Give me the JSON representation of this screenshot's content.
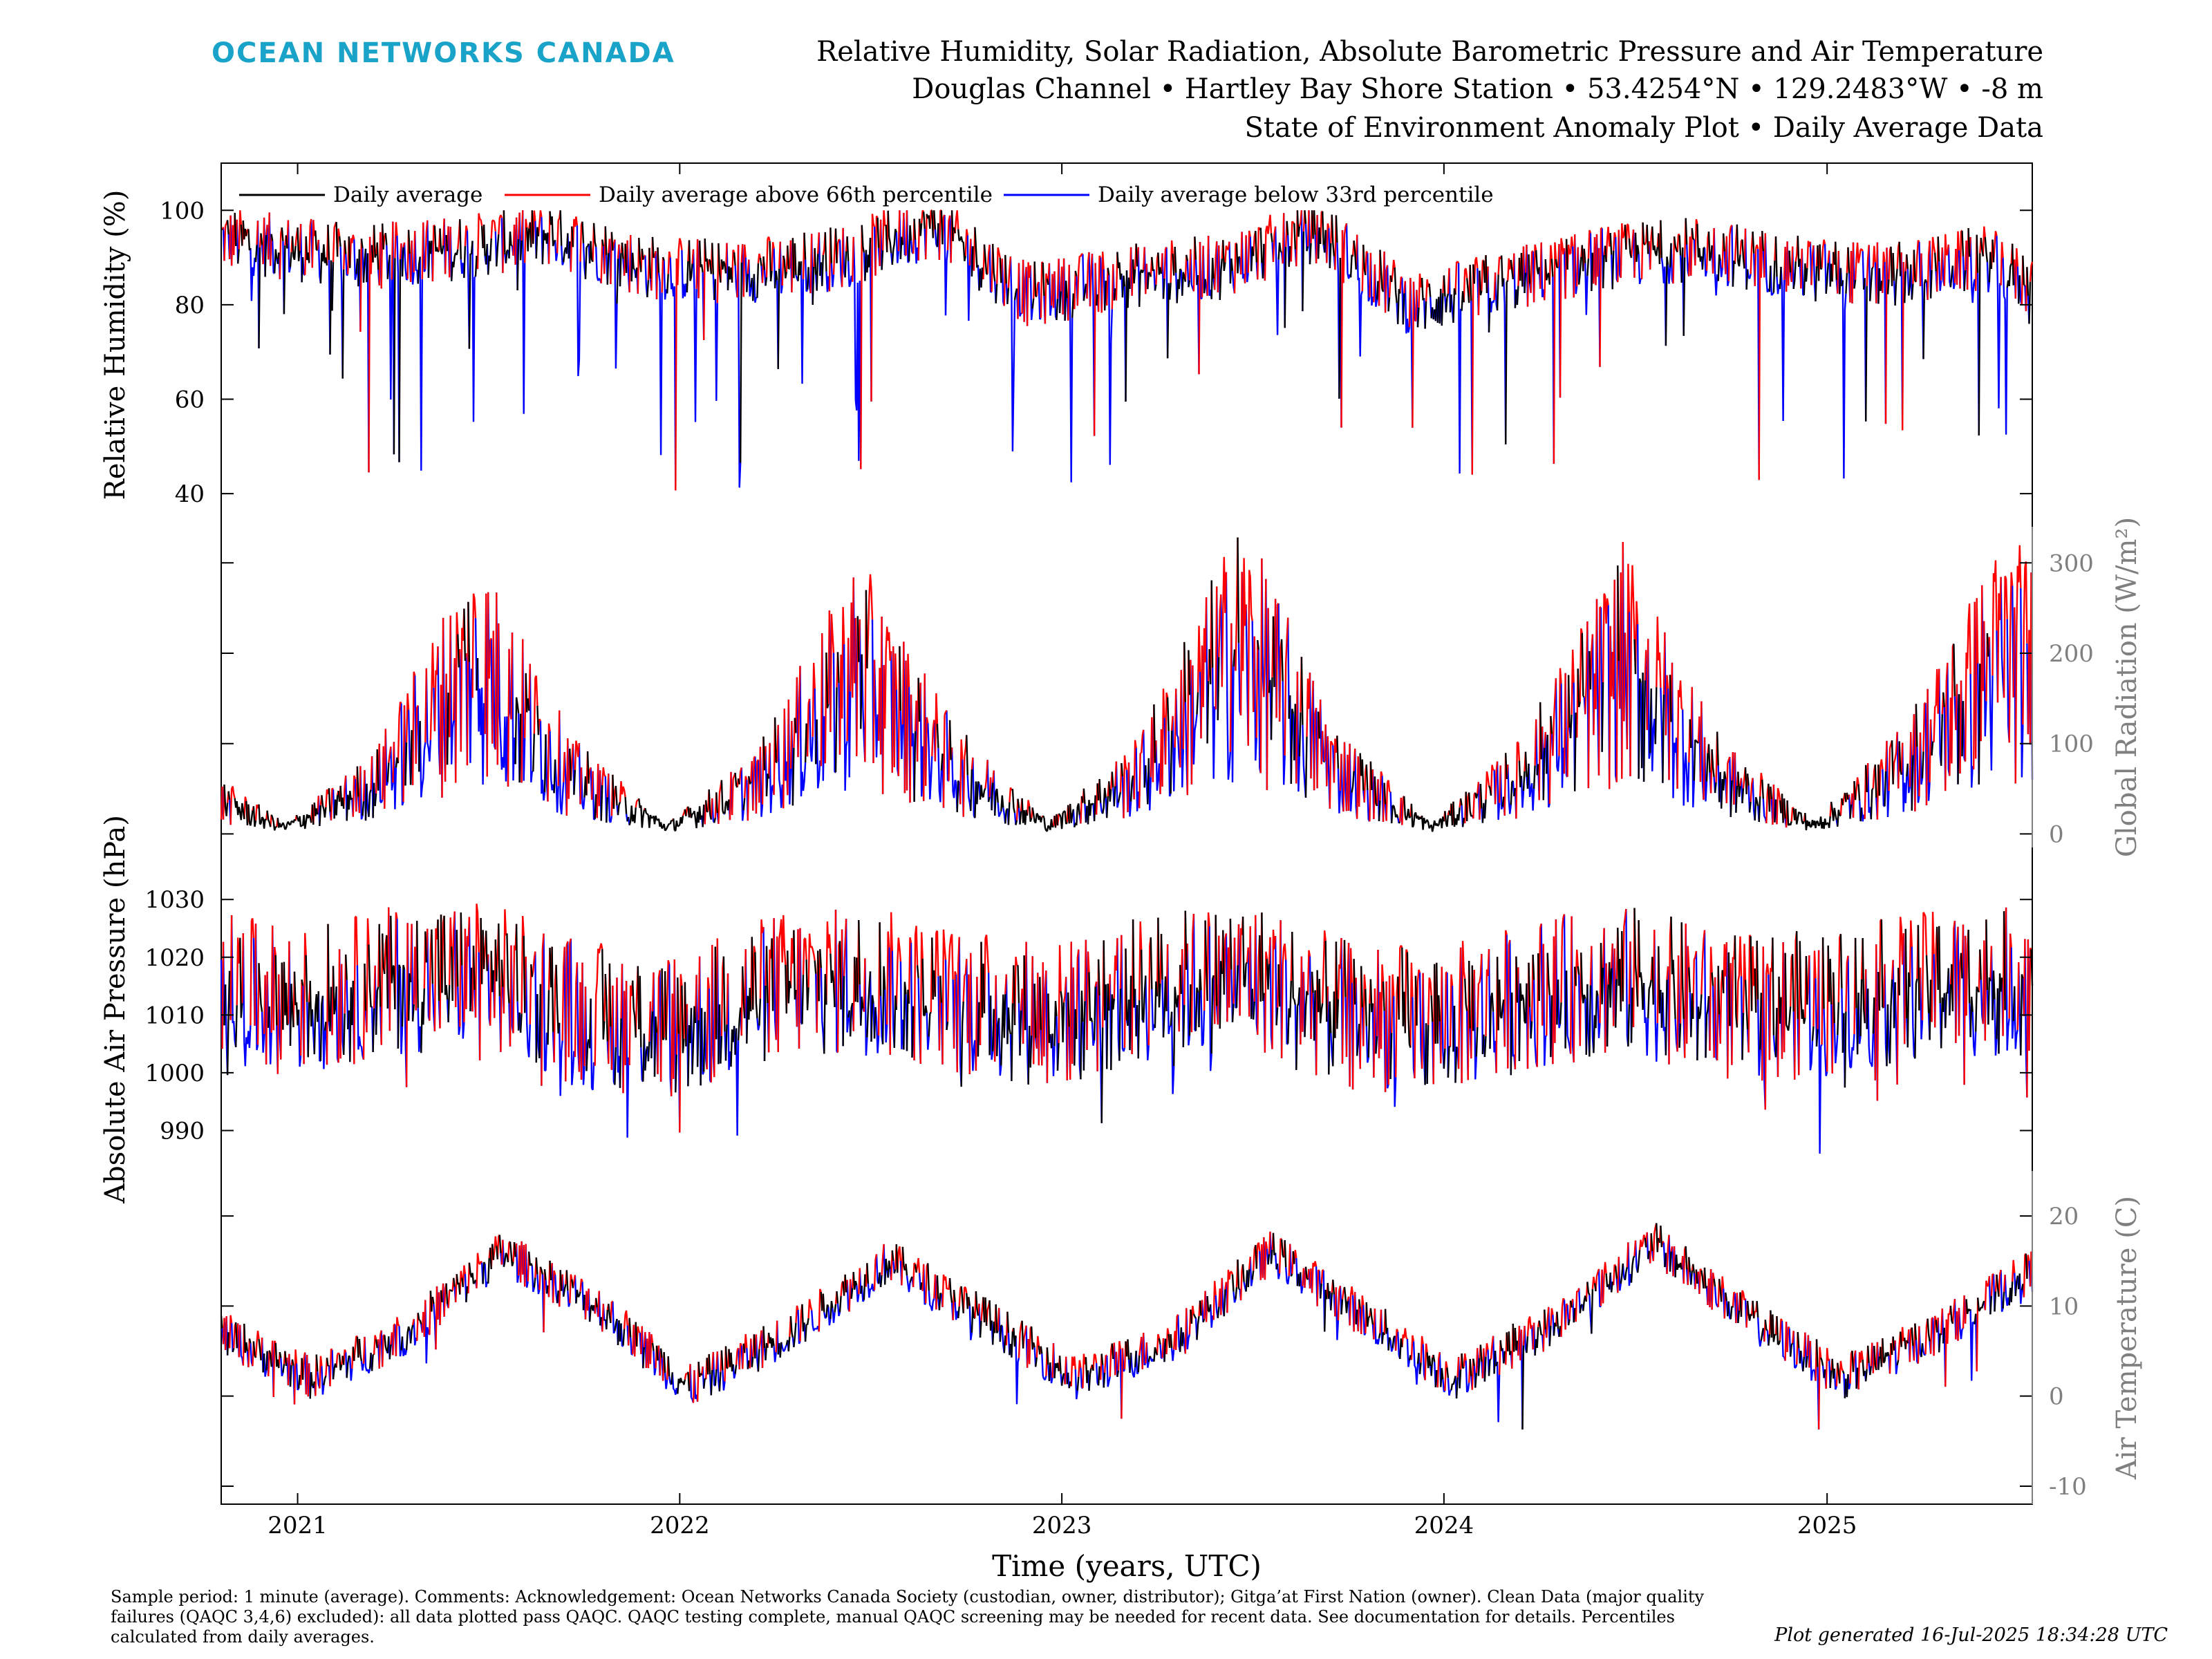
{
  "header": {
    "logo_text": "OCEAN NETWORKS CANADA",
    "title_line1": "Relative Humidity, Solar Radiation, Absolute Barometric Pressure and Air Temperature",
    "title_line2": "Douglas Channel • Hartley Bay Shore Station • 53.4254°N • 129.2483°W • -8 m",
    "title_line3": "State of Environment Anomaly Plot • Daily Average Data"
  },
  "colors": {
    "normal": "#000000",
    "above": "#ff0000",
    "below": "#0000ff",
    "logo": "#1aa3c8",
    "right_axis": "#7f7f7f"
  },
  "legend": {
    "daily_average": "Daily average",
    "above": "Daily average above 66th percentile",
    "below": "Daily average below 33rd percentile"
  },
  "chart_data": {
    "type": "line",
    "xlabel": "Time (years, UTC)",
    "x_range": [
      "2020-10-20",
      "2025-07-16"
    ],
    "x_ticks": [
      "2021",
      "2022",
      "2023",
      "2024",
      "2025"
    ],
    "panels": [
      {
        "name": "humidity",
        "ylabel": "Relative Humidity (%)",
        "axis_side": "left",
        "ylim": [
          33,
          110
        ],
        "yticks": [
          40,
          60,
          80,
          100
        ],
        "anchors": {
          "x": [
            "2020-10-20",
            "2021-03",
            "2021-06",
            "2021-09",
            "2021-12",
            "2022-03",
            "2022-06",
            "2022-09",
            "2022-12",
            "2023-03",
            "2023-06",
            "2023-09",
            "2023-12",
            "2024-03",
            "2024-06",
            "2024-09",
            "2024-12",
            "2025-03",
            "2025-06",
            "2025-07-16"
          ],
          "y": [
            94,
            90,
            92,
            95,
            88,
            87,
            90,
            97,
            82,
            86,
            88,
            96,
            80,
            85,
            90,
            92,
            88,
            86,
            90,
            84
          ]
        },
        "series_info": "daily average, colored red above 66th and blue below 33rd percentile"
      },
      {
        "name": "radiation",
        "ylabel": "Global Radiation (W/m²)",
        "axis_side": "right",
        "ylim": [
          -15,
          340
        ],
        "yticks": [
          0,
          100,
          200,
          300
        ],
        "anchors": {
          "x": [
            "2020-10-20",
            "2020-12-20",
            "2021-03-15",
            "2021-06-21",
            "2021-09-20",
            "2021-12-20",
            "2022-03-15",
            "2022-06-21",
            "2022-09-20",
            "2022-12-20",
            "2023-03-15",
            "2023-06-21",
            "2023-09-20",
            "2023-12-20",
            "2024-03-15",
            "2024-06-21",
            "2024-09-20",
            "2024-12-20",
            "2025-03-15",
            "2025-06-21",
            "2025-07-16"
          ],
          "y": [
            40,
            8,
            60,
            210,
            70,
            8,
            60,
            200,
            80,
            10,
            70,
            230,
            80,
            8,
            70,
            210,
            70,
            10,
            80,
            220,
            200
          ]
        }
      },
      {
        "name": "pressure",
        "ylabel": "Absolute Air Pressure (hPa)",
        "axis_side": "left",
        "ylim": [
          983,
          1039
        ],
        "yticks": [
          990,
          1000,
          1010,
          1020,
          1030
        ],
        "anchors": {
          "x": [
            "2020-10-20",
            "2021-01",
            "2021-04",
            "2021-07",
            "2021-10",
            "2022-01",
            "2022-04",
            "2022-07",
            "2022-10",
            "2023-01",
            "2023-04",
            "2023-07",
            "2023-10",
            "2024-01",
            "2024-04",
            "2024-07",
            "2024-10",
            "2025-01",
            "2025-04",
            "2025-07-16"
          ],
          "y": [
            1015,
            1012,
            1016,
            1017,
            1010,
            1008,
            1015,
            1016,
            1012,
            1010,
            1015,
            1017,
            1010,
            1009,
            1014,
            1016,
            1011,
            1012,
            1015,
            1016
          ]
        }
      },
      {
        "name": "temperature",
        "ylabel": "Air Temperature (C)",
        "axis_side": "right",
        "ylim": [
          -12,
          25
        ],
        "yticks": [
          -10,
          0,
          10,
          20
        ],
        "anchors": {
          "x": [
            "2020-10-20",
            "2021-01-15",
            "2021-04-15",
            "2021-07-15",
            "2021-10-15",
            "2022-01-10",
            "2022-04-15",
            "2022-07-20",
            "2022-10-15",
            "2023-01-15",
            "2023-04-15",
            "2023-07-20",
            "2023-10-15",
            "2024-01-10",
            "2024-04-15",
            "2024-07-20",
            "2024-10-15",
            "2025-01-15",
            "2025-04-15",
            "2025-07-16"
          ],
          "y": [
            7,
            2,
            7,
            16,
            10,
            1,
            7,
            15,
            9,
            2,
            6,
            16,
            9,
            2,
            8,
            17,
            9,
            2,
            7,
            14
          ]
        }
      }
    ]
  },
  "footer": {
    "text": "Sample period: 1 minute (average). Comments: Acknowledgement: Ocean Networks Canada Society (custodian, owner, distributor); Gitga’at First Nation (owner). Clean Data (major quality failures (QAQC 3,4,6) excluded): all data plotted pass QAQC. QAQC testing complete, manual QAQC screening may be needed for recent data. See documentation for details. Percentiles calculated from daily averages.",
    "generated": "Plot generated 16-Jul-2025 18:34:28 UTC"
  }
}
